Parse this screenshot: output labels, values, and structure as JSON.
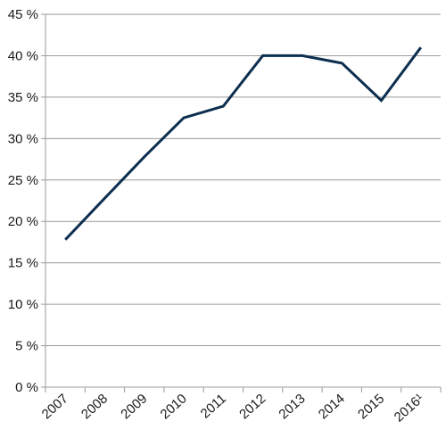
{
  "chart_data": {
    "type": "line",
    "title": "",
    "xlabel": "",
    "ylabel": "",
    "categories": [
      "2007",
      "2008",
      "2009",
      "2010",
      "2011",
      "2012",
      "2013",
      "2014",
      "2015",
      "2016¹"
    ],
    "series": [
      {
        "values": [
          17.8,
          22.8,
          27.8,
          32.5,
          33.9,
          40.0,
          40.0,
          39.1,
          34.6,
          41.0
        ],
        "color": "#0d2f4f"
      }
    ],
    "ylim": [
      0,
      45
    ],
    "ytick_values": [
      0,
      5,
      10,
      15,
      20,
      25,
      30,
      35,
      40,
      45
    ],
    "ytick_labels": [
      "0 %",
      "5 %",
      "10 %",
      "15 %",
      "20 %",
      "25 %",
      "30 %",
      "35 %",
      "40 %",
      "45 %"
    ],
    "grid": true,
    "legend": "none"
  }
}
